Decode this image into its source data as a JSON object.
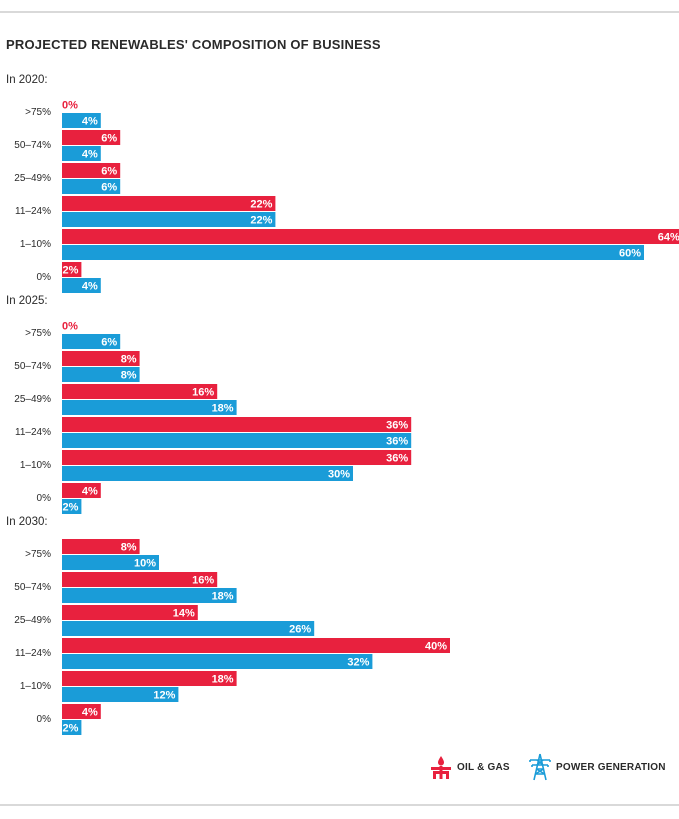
{
  "chart_data": {
    "type": "bar",
    "orientation": "horizontal",
    "title": "PROJECTED RENEWABLES' COMPOSITION OF BUSINESS",
    "categories": [
      ">75%",
      "50–74%",
      "25–49%",
      "11–24%",
      "1–10%",
      "0%"
    ],
    "groups": [
      {
        "label": "In 2020:",
        "series": [
          {
            "name": "OIL & GAS",
            "values": [
              0,
              6,
              6,
              22,
              64,
              2
            ],
            "labels": [
              "0%",
              "6%",
              "6%",
              "22%",
              "64%",
              "2%"
            ]
          },
          {
            "name": "POWER GENERATION",
            "values": [
              4,
              4,
              6,
              22,
              60,
              4
            ],
            "labels": [
              "4%",
              "4%",
              "6%",
              "22%",
              "60%",
              "4%"
            ]
          }
        ]
      },
      {
        "label": "In 2025:",
        "series": [
          {
            "name": "OIL & GAS",
            "values": [
              0,
              8,
              16,
              36,
              36,
              4
            ],
            "labels": [
              "0%",
              "8%",
              "16%",
              "36%",
              "36%",
              "4%"
            ]
          },
          {
            "name": "POWER GENERATION",
            "values": [
              6,
              8,
              18,
              36,
              30,
              2
            ],
            "labels": [
              "6%",
              "8%",
              "18%",
              "36%",
              "30%",
              "2%"
            ]
          }
        ]
      },
      {
        "label": "In 2030:",
        "series": [
          {
            "name": "OIL & GAS",
            "values": [
              8,
              16,
              14,
              40,
              18,
              4
            ],
            "labels": [
              "8%",
              "16%",
              "14%",
              "40%",
              "18%",
              "4%"
            ]
          },
          {
            "name": "POWER GENERATION",
            "values": [
              10,
              18,
              26,
              32,
              12,
              2
            ],
            "labels": [
              "10%",
              "18%",
              "26%",
              "32%",
              "12%",
              "2%"
            ]
          }
        ]
      }
    ],
    "xlim": [
      0,
      64
    ],
    "grid": false,
    "legend_position": "bottom-right"
  },
  "legend": {
    "oil_label": "OIL & GAS",
    "power_label": "POWER GENERATION"
  },
  "colors": {
    "oil": "#e8213e",
    "power": "#1a9cd8",
    "text": "#2a2a2a"
  },
  "icons": {
    "oil": "oil-derrick-icon",
    "power": "power-tower-icon"
  }
}
